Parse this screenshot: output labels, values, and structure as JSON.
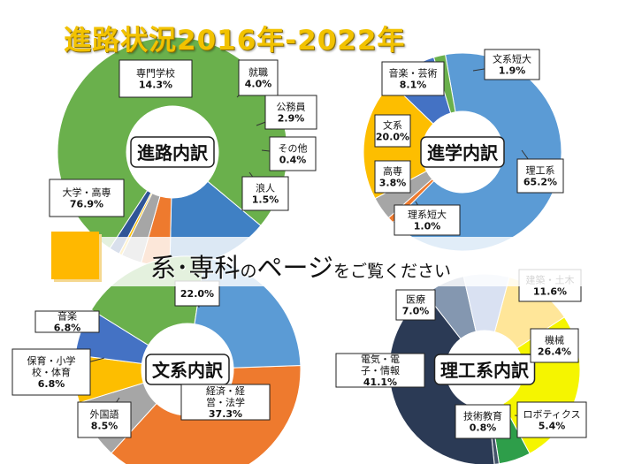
{
  "page_title": "進路状況2016年-2022年",
  "banner": {
    "part1": "系･専科",
    "part2": "の",
    "part3": "ページ",
    "part4": "をご覧ください"
  },
  "chart_data": [
    {
      "type": "pie",
      "title": "進路内訳",
      "slices": [
        {
          "label": "大学・高専",
          "value": 76.9,
          "value_label": "76.9%",
          "color": "#6ab04c"
        },
        {
          "label": "専門学校",
          "value": 14.3,
          "value_label": "14.3%",
          "color": "#3f80c4"
        },
        {
          "label": "就職",
          "value": 4.0,
          "value_label": "4.0%",
          "color": "#ee7a2e"
        },
        {
          "label": "公務員",
          "value": 2.9,
          "value_label": "2.9%",
          "color": "#a6a6a6"
        },
        {
          "label": "その他",
          "value": 0.4,
          "value_label": "0.4%",
          "color": "#fdbe00"
        },
        {
          "label": "浪人",
          "value": 1.5,
          "value_label": "1.5%",
          "color": "#2f5597"
        }
      ]
    },
    {
      "type": "pie",
      "title": "進学内訳",
      "slices": [
        {
          "label": "理工系",
          "value": 65.2,
          "value_label": "65.2%",
          "color": "#5b9bd5"
        },
        {
          "label": "理系短大",
          "value": 1.0,
          "value_label": "1.0%",
          "color": "#ee7a2e"
        },
        {
          "label": "高専",
          "value": 3.8,
          "value_label": "3.8%",
          "color": "#a6a6a6"
        },
        {
          "label": "文系",
          "value": 20.0,
          "value_label": "20.0%",
          "color": "#fdbe00"
        },
        {
          "label": "音楽・芸術",
          "value": 8.1,
          "value_label": "8.1%",
          "color": "#4472c4"
        },
        {
          "label": "文系短大",
          "value": 1.9,
          "value_label": "1.9%",
          "color": "#6ab04c"
        }
      ]
    },
    {
      "type": "pie",
      "title": "文系内訳",
      "slices": [
        {
          "label": "経済・経営・法学",
          "value": 37.3,
          "value_label": "37.3%",
          "color": "#ee7a2e"
        },
        {
          "label": "外国語",
          "value": 8.5,
          "value_label": "8.5%",
          "color": "#a6a6a6"
        },
        {
          "label": "保育・小学校・体育",
          "value": 6.8,
          "value_label": "6.8%",
          "color": "#fdbe00"
        },
        {
          "label": "音楽",
          "value": 6.8,
          "value_label": "6.8%",
          "color": "#4472c4"
        },
        {
          "label": "",
          "value": 18.6,
          "value_label": "",
          "color": "#6ab04c"
        },
        {
          "label": "",
          "value": 22.0,
          "value_label": "22.0%",
          "color": "#5b9bd5"
        }
      ]
    },
    {
      "type": "pie",
      "title": "理工系内訳",
      "slices": [
        {
          "label": "建築・土木",
          "value": 11.6,
          "value_label": "11.6%",
          "color": "#ffe699"
        },
        {
          "label": "機械",
          "value": 26.4,
          "value_label": "26.4%",
          "color": "#f5f500"
        },
        {
          "label": "ロボティクス",
          "value": 5.4,
          "value_label": "5.4%",
          "color": "#2e9e4a"
        },
        {
          "label": "技術教育",
          "value": 0.8,
          "value_label": "0.8%",
          "color": "#44546a"
        },
        {
          "label": "電気・電子・情報",
          "value": 41.1,
          "value_label": "41.1%",
          "color": "#2b3a55"
        },
        {
          "label": "医療",
          "value": 7.0,
          "value_label": "7.0%",
          "color": "#8497b0"
        },
        {
          "label": "",
          "value": 7.7,
          "value_label": "",
          "color": "#d9e1f2"
        }
      ]
    }
  ]
}
